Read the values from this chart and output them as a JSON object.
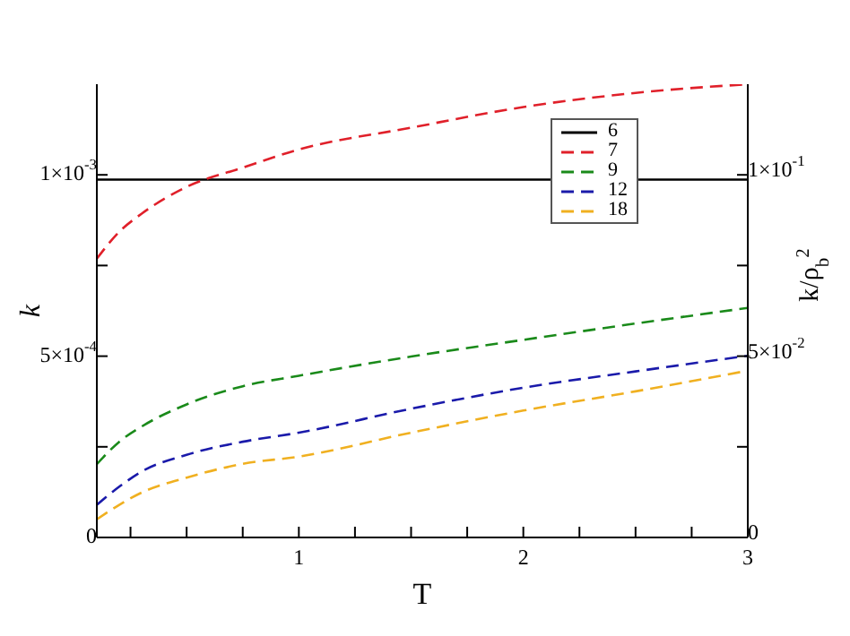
{
  "chart_data": {
    "type": "line",
    "xlabel": "T",
    "ylabel": "k",
    "y2label": "k/ρ$_{b}$$^{2}$",
    "x": [
      0.1,
      0.2,
      0.3,
      0.5,
      0.75,
      1,
      1.5,
      2,
      2.5,
      3
    ],
    "series": [
      {
        "name": "6",
        "color": "#000000",
        "line_style": "solid",
        "values": [
          0.000987,
          0.000987,
          0.000987,
          0.000987,
          0.000987,
          0.000987,
          0.000987,
          0.000987,
          0.000987,
          0.000987
        ]
      },
      {
        "name": "7",
        "color": "#e0202a",
        "line_style": "dashed",
        "values": [
          0.000769,
          0.000843,
          0.000893,
          0.000967,
          0.00102,
          0.00107,
          0.00113,
          0.001187,
          0.001226,
          0.00125
        ]
      },
      {
        "name": "9",
        "color": "#1a8a1a",
        "line_style": "dashed",
        "values": [
          0.000202,
          0.000264,
          0.000306,
          0.000367,
          0.000417,
          0.000446,
          0.000499,
          0.000545,
          0.00059,
          0.000633
        ]
      },
      {
        "name": "12",
        "color": "#1a1aaa",
        "line_style": "dashed",
        "values": [
          9e-05,
          0.00014,
          0.000182,
          0.000228,
          0.000264,
          0.000289,
          0.000355,
          0.000413,
          0.000458,
          0.000501
        ]
      },
      {
        "name": "18",
        "color": "#f0b020",
        "line_style": "dashed",
        "values": [
          5e-05,
          9e-05,
          0.000124,
          0.000165,
          0.000203,
          0.000223,
          0.000289,
          0.00035,
          0.000403,
          0.00046
        ]
      }
    ],
    "xlim": [
      0.1,
      3
    ],
    "xticks": [
      {
        "value": 0.25,
        "label": null
      },
      {
        "value": 0.5,
        "label": null
      },
      {
        "value": 0.75,
        "label": null
      },
      1,
      {
        "value": 1.25,
        "label": null
      },
      {
        "value": 1.5,
        "label": null
      },
      {
        "value": 1.75,
        "label": null
      },
      2,
      {
        "value": 2.25,
        "label": null
      },
      {
        "value": 2.5,
        "label": null
      },
      {
        "value": 2.75,
        "label": null
      },
      3
    ],
    "ylim": [
      0,
      0.00125
    ],
    "yticks": [
      0,
      {
        "value": 0.00025,
        "label": null
      },
      {
        "value": 0.0005,
        "label": "5×10$^{-4}$"
      },
      {
        "value": 0.00075,
        "label": null
      },
      {
        "value": 0.001,
        "label": "1×10$^{-3}$"
      }
    ],
    "y2lim": [
      0,
      0.125
    ],
    "y2ticks": [
      0,
      {
        "value": 0.025,
        "label": null
      },
      {
        "value": 0.05,
        "label": "5×10$^{-2}$"
      },
      {
        "value": 0.075,
        "label": null
      },
      {
        "value": 0.1,
        "label": "1×10$^{-1}$"
      }
    ],
    "grid": false,
    "legend": "top right",
    "marker": "none"
  }
}
